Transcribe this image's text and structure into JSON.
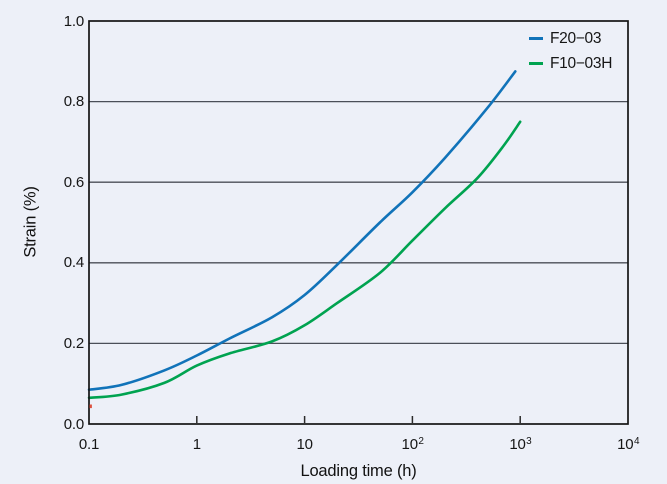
{
  "figure": {
    "background_color": "#EDF0F8",
    "frame_color": "#141414",
    "grid_color": "#4b4f58",
    "tick_color": "#2a2a2a",
    "text_color": "#161616"
  },
  "chart_data": {
    "type": "line",
    "title": "",
    "xlabel": "Loading time (h)",
    "ylabel": "Strain (%)",
    "x_scale": "log",
    "xlim": [
      0.1,
      10000
    ],
    "ylim": [
      0.0,
      1.0
    ],
    "grid": "horizontal",
    "legend_position": "top-right-inside",
    "x_ticks": [
      {
        "value": 0.1,
        "label": "0.1"
      },
      {
        "value": 1,
        "label": "1"
      },
      {
        "value": 10,
        "label": "10"
      },
      {
        "value": 100,
        "label": "10^2"
      },
      {
        "value": 1000,
        "label": "10^3"
      },
      {
        "value": 10000,
        "label": "10^4"
      }
    ],
    "y_ticks": [
      {
        "value": 0.0,
        "label": "0.0"
      },
      {
        "value": 0.2,
        "label": "0.2"
      },
      {
        "value": 0.4,
        "label": "0.4"
      },
      {
        "value": 0.6,
        "label": "0.6"
      },
      {
        "value": 0.8,
        "label": "0.8"
      },
      {
        "value": 1.0,
        "label": "1.0"
      }
    ],
    "series": [
      {
        "name": "F20−03",
        "color": "#1173B9",
        "points": [
          [
            0.1,
            0.085
          ],
          [
            0.2,
            0.097
          ],
          [
            0.5,
            0.133
          ],
          [
            1,
            0.17
          ],
          [
            2,
            0.212
          ],
          [
            5,
            0.265
          ],
          [
            10,
            0.32
          ],
          [
            20,
            0.395
          ],
          [
            50,
            0.5
          ],
          [
            100,
            0.575
          ],
          [
            200,
            0.66
          ],
          [
            500,
            0.785
          ],
          [
            900,
            0.875
          ]
        ]
      },
      {
        "name": "F10−03H",
        "color": "#00A350",
        "points": [
          [
            0.1,
            0.065
          ],
          [
            0.2,
            0.073
          ],
          [
            0.5,
            0.102
          ],
          [
            1,
            0.145
          ],
          [
            2,
            0.175
          ],
          [
            5,
            0.205
          ],
          [
            10,
            0.245
          ],
          [
            20,
            0.3
          ],
          [
            50,
            0.375
          ],
          [
            100,
            0.455
          ],
          [
            200,
            0.535
          ],
          [
            400,
            0.61
          ],
          [
            700,
            0.69
          ],
          [
            1000,
            0.75
          ]
        ]
      }
    ]
  }
}
